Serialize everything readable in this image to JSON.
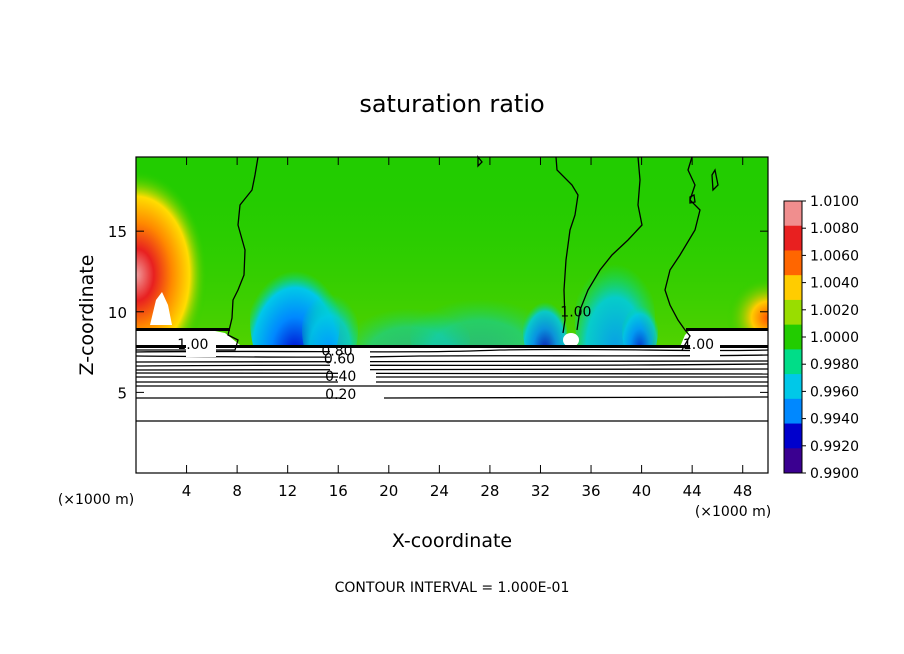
{
  "chart_data": {
    "type": "heatmap",
    "title": "saturation ratio",
    "xlabel": "X-coordinate",
    "ylabel": "Z-coordinate",
    "x_unit": "(×1000 m)",
    "y_unit": "(×1000 m)",
    "xlim": [
      0,
      50
    ],
    "ylim": [
      0,
      19.6
    ],
    "x_ticks": [
      "4",
      "8",
      "12",
      "16",
      "20",
      "24",
      "28",
      "32",
      "36",
      "40",
      "44",
      "48"
    ],
    "x_tick_values": [
      4,
      8,
      12,
      16,
      20,
      24,
      28,
      32,
      36,
      40,
      44,
      48
    ],
    "y_ticks": [
      "5",
      "10",
      "15"
    ],
    "y_tick_values": [
      5,
      10,
      15
    ],
    "footer": "CONTOUR INTERVAL = 1.000E-01",
    "contour_interval": 0.1,
    "colorbar": {
      "labels": [
        "1.0100",
        "1.0080",
        "1.0060",
        "1.0040",
        "1.0020",
        "1.0000",
        "0.9980",
        "0.9960",
        "0.9940",
        "0.9920",
        "0.9900"
      ],
      "colors": [
        "#f08e8e",
        "#e82020",
        "#ff6600",
        "#ffcc00",
        "#99dd00",
        "#22cc00",
        "#00dd88",
        "#00c8e8",
        "#0088ff",
        "#0000cc",
        "#3a0090"
      ]
    },
    "contour_labels": [
      {
        "text": "1.00",
        "x": 4.5,
        "z": 7.7
      },
      {
        "text": "0.80",
        "x": 15.9,
        "z": 7.3
      },
      {
        "text": "0.60",
        "x": 16.1,
        "z": 6.8
      },
      {
        "text": "0.40",
        "x": 16.2,
        "z": 5.7
      },
      {
        "text": "0.20",
        "x": 16.2,
        "z": 4.6
      },
      {
        "text": "1.00",
        "x": 34.8,
        "z": 9.7
      },
      {
        "text": "1.00",
        "x": 44.5,
        "z": 7.7
      }
    ]
  }
}
